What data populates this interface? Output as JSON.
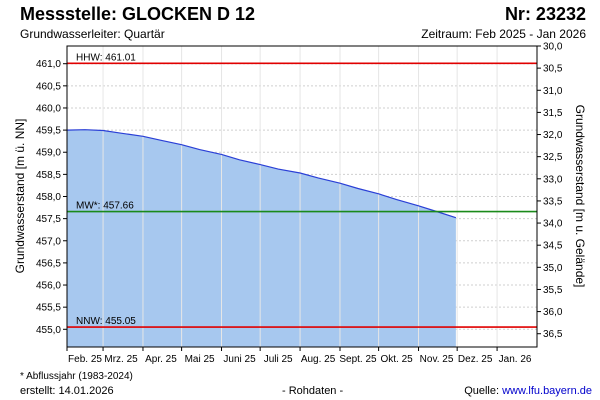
{
  "header": {
    "title": "Messstelle: GLOCKEN D 12",
    "nr": "Nr: 23232",
    "subtitle": "Grundwasserleiter: Quartär",
    "zeitraum": "Zeitraum: Feb 2025 - Jan 2026"
  },
  "footer": {
    "footnote": "* Abflussjahr (1983-2024)",
    "erstellt": "erstellt:  14.01.2026",
    "rohdaten": "- Rohdaten -",
    "quelle_label": "Quelle: ",
    "quelle_link": "www.lfu.bayern.de"
  },
  "colors": {
    "fill": "#a7c8ef",
    "line": "#2a3fd6",
    "hhw": "#e00000",
    "mw": "#1a8a1a",
    "nnw": "#e00000",
    "grid": "#cfcfcf"
  },
  "chart_data": {
    "type": "area",
    "ylabel": "Grundwasserstand [m ü. NN]",
    "ylabel_right": "Grundwasserstand [m u. Gelände]",
    "ylim": [
      454.6,
      461.4
    ],
    "ylim_right": [
      30.0,
      36.8
    ],
    "yticks": [
      "461,0",
      "460,5",
      "460,0",
      "459,5",
      "459,0",
      "458,5",
      "458,0",
      "457,5",
      "457,0",
      "456,5",
      "456,0",
      "455,5",
      "455,0"
    ],
    "yticks_right": [
      "30,0",
      "30,5",
      "31,0",
      "31,5",
      "32,0",
      "32,5",
      "33,0",
      "33,5",
      "34,0",
      "34,5",
      "35,0",
      "35,5",
      "36,0",
      "36,5"
    ],
    "months": [
      "Feb. 25",
      "Mrz. 25",
      "Apr. 25",
      "Mai 25",
      "Juni 25",
      "Juli 25",
      "Aug. 25",
      "Sept. 25",
      "Okt. 25",
      "Nov. 25",
      "Dez. 25",
      "Jan. 26"
    ],
    "series": [
      {
        "x": [
          "2025-02-01",
          "2025-02-15",
          "2025-03-01",
          "2025-03-15",
          "2025-04-01",
          "2025-04-15",
          "2025-05-01",
          "2025-05-15",
          "2025-06-01",
          "2025-06-15",
          "2025-07-01",
          "2025-07-15",
          "2025-08-01",
          "2025-08-15",
          "2025-09-01",
          "2025-09-15",
          "2025-10-01",
          "2025-10-15",
          "2025-11-01",
          "2025-11-15",
          "2025-11-30"
        ],
        "values": [
          459.5,
          459.51,
          459.49,
          459.43,
          459.36,
          459.27,
          459.17,
          459.06,
          458.95,
          458.83,
          458.72,
          458.62,
          458.53,
          458.42,
          458.3,
          458.18,
          458.06,
          457.93,
          457.79,
          457.66,
          457.52
        ]
      }
    ],
    "reference_lines": [
      {
        "label": "HHW: 461.01",
        "value": 461.01
      },
      {
        "label": "MW*: 457.66",
        "value": 457.66
      },
      {
        "label": "NNW: 455.05",
        "value": 455.05
      }
    ],
    "grid": true
  }
}
